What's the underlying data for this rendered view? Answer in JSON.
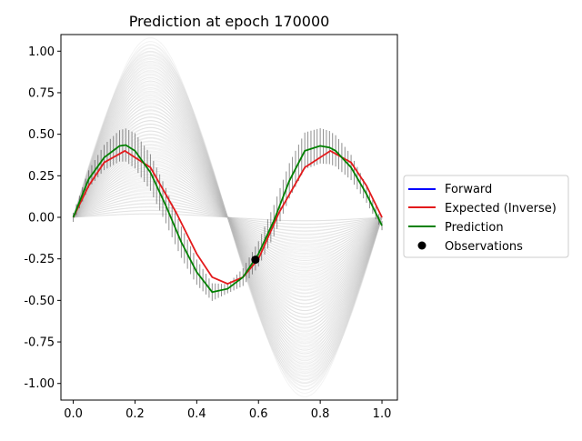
{
  "chart_data": {
    "type": "line",
    "title": "Prediction at epoch 170000",
    "xlabel": "",
    "ylabel": "",
    "xlim": [
      -0.04,
      1.05
    ],
    "ylim": [
      -1.1,
      1.1
    ],
    "x_ticks": [
      "0.0",
      "0.2",
      "0.4",
      "0.6",
      "0.8",
      "1.0"
    ],
    "y_ticks": [
      "1.00",
      "0.75",
      "0.50",
      "0.25",
      "0.00",
      "-0.25",
      "-0.50",
      "-0.75",
      "-1.00"
    ],
    "grid": false,
    "legend_position": "center-right-outside",
    "series": [
      {
        "name": "Forward",
        "color": "#0000ff"
      },
      {
        "name": "Expected (Inverse)",
        "color": "#e31a1c",
        "x": [
          0.0,
          0.05,
          0.1,
          0.167,
          0.25,
          0.333,
          0.4,
          0.45,
          0.5,
          0.55,
          0.6,
          0.667,
          0.75,
          0.833,
          0.9,
          0.95,
          1.0
        ],
        "y": [
          0.0,
          0.19,
          0.33,
          0.4,
          0.3,
          0.03,
          -0.22,
          -0.36,
          -0.4,
          -0.36,
          -0.25,
          0.03,
          0.3,
          0.4,
          0.33,
          0.19,
          0.0
        ]
      },
      {
        "name": "Prediction",
        "color": "#008000",
        "x": [
          0.0,
          0.05,
          0.1,
          0.15,
          0.17,
          0.2,
          0.25,
          0.3,
          0.35,
          0.4,
          0.45,
          0.5,
          0.55,
          0.6,
          0.65,
          0.7,
          0.75,
          0.8,
          0.83,
          0.85,
          0.9,
          0.95,
          1.0
        ],
        "y": [
          0.0,
          0.23,
          0.36,
          0.43,
          0.435,
          0.4,
          0.27,
          0.07,
          -0.15,
          -0.33,
          -0.45,
          -0.43,
          -0.36,
          -0.22,
          -0.02,
          0.22,
          0.4,
          0.43,
          0.42,
          0.4,
          0.3,
          0.14,
          -0.05
        ],
        "error_band": 0.11
      },
      {
        "name": "Observations",
        "color": "#000000",
        "kind": "scatter",
        "x": [
          0.59
        ],
        "y": [
          -0.255
        ]
      }
    ]
  }
}
